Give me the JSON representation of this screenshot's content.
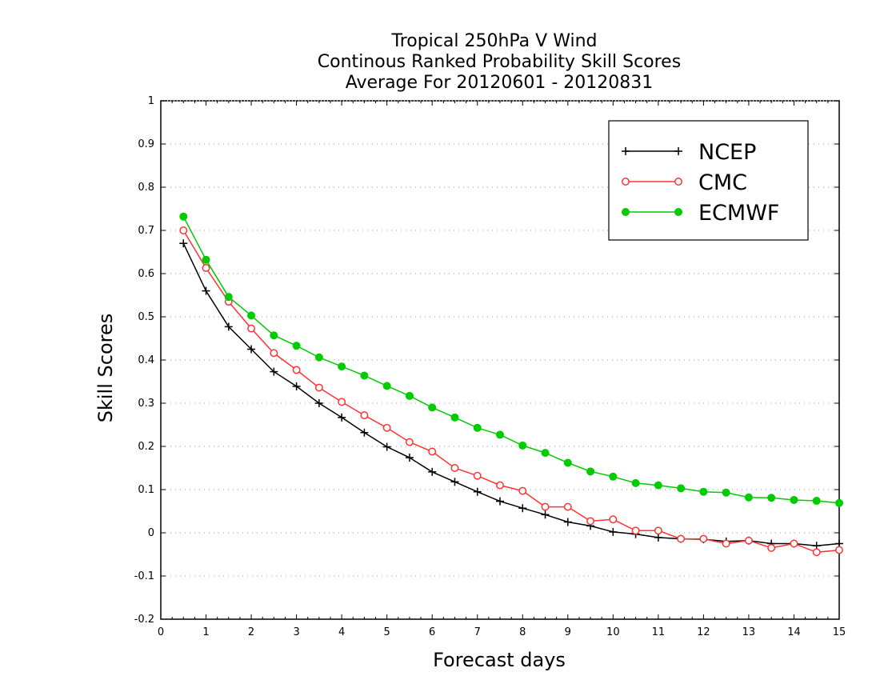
{
  "chart_data": {
    "type": "line",
    "title_lines": [
      "Tropical 250hPa V Wind",
      "Continous Ranked Probability Skill Scores",
      "Average For 20120601 - 20120831"
    ],
    "xlabel": "Forecast days",
    "ylabel": "Skill Scores",
    "xlim": [
      0,
      15
    ],
    "ylim": [
      -0.2,
      1
    ],
    "x_ticks": [
      0,
      1,
      2,
      3,
      4,
      5,
      6,
      7,
      8,
      9,
      10,
      11,
      12,
      13,
      14,
      15
    ],
    "x_tick_labels": [
      "0",
      "1",
      "2",
      "3",
      "4",
      "5",
      "6",
      "7",
      "8",
      "9",
      "10",
      "11",
      "12",
      "13",
      "14",
      "15"
    ],
    "y_ticks": [
      -0.2,
      -0.1,
      0,
      0.1,
      0.2,
      0.3,
      0.4,
      0.5,
      0.6,
      0.7,
      0.8,
      0.9,
      1
    ],
    "y_tick_labels": [
      "-0.2",
      "-0.1",
      "0",
      "0.1",
      "0.2",
      "0.3",
      "0.4",
      "0.5",
      "0.6",
      "0.7",
      "0.8",
      "0.9",
      "1"
    ],
    "grid": "horizontal dotted",
    "legend_position": "top-right",
    "x": [
      0.5,
      1,
      1.5,
      2,
      2.5,
      3,
      3.5,
      4,
      4.5,
      5,
      5.5,
      6,
      6.5,
      7,
      7.5,
      8,
      8.5,
      9,
      9.5,
      10,
      10.5,
      11,
      11.5,
      12,
      12.5,
      13,
      13.5,
      14,
      14.5,
      15
    ],
    "series": [
      {
        "name": "NCEP",
        "color": "#000000",
        "marker": "plus",
        "values": [
          0.67,
          0.56,
          0.477,
          0.425,
          0.373,
          0.339,
          0.3,
          0.267,
          0.232,
          0.199,
          0.174,
          0.141,
          0.118,
          0.095,
          0.073,
          0.057,
          0.042,
          0.025,
          0.016,
          0.002,
          -0.003,
          -0.011,
          -0.014,
          -0.015,
          -0.02,
          -0.018,
          -0.025,
          -0.025,
          -0.03,
          -0.025
        ]
      },
      {
        "name": "CMC",
        "color": "#ff3333",
        "marker": "open-circle",
        "values": [
          0.7,
          0.613,
          0.535,
          0.473,
          0.416,
          0.377,
          0.336,
          0.303,
          0.272,
          0.243,
          0.21,
          0.188,
          0.15,
          0.132,
          0.11,
          0.097,
          0.06,
          0.06,
          0.027,
          0.031,
          0.005,
          0.005,
          -0.014,
          -0.014,
          -0.025,
          -0.018,
          -0.035,
          -0.025,
          -0.045,
          -0.04
        ]
      },
      {
        "name": "ECMWF",
        "color": "#00cc00",
        "marker": "filled-circle",
        "values": [
          0.732,
          0.632,
          0.546,
          0.503,
          0.457,
          0.433,
          0.406,
          0.385,
          0.364,
          0.34,
          0.317,
          0.29,
          0.267,
          0.243,
          0.227,
          0.202,
          0.185,
          0.162,
          0.142,
          0.13,
          0.115,
          0.11,
          0.103,
          0.095,
          0.093,
          0.082,
          0.081,
          0.076,
          0.074,
          0.069
        ]
      }
    ]
  }
}
